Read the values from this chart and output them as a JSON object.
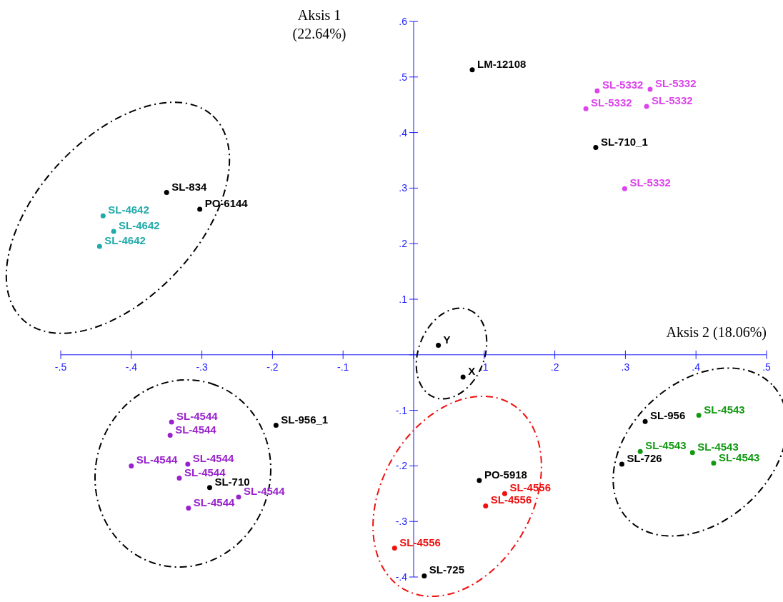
{
  "chart_data": {
    "type": "scatter",
    "xlabel": "Aksis 2 (18.06%)",
    "ylabel": "Aksis 1 (22.64%)",
    "xlim": [
      -0.5,
      0.5
    ],
    "ylim": [
      -0.4,
      0.6
    ],
    "xticks": [
      {
        "value": -0.5,
        "label": "-.5"
      },
      {
        "value": -0.4,
        "label": "-.4"
      },
      {
        "value": -0.3,
        "label": "-.3"
      },
      {
        "value": -0.2,
        "label": "-.2"
      },
      {
        "value": -0.1,
        "label": "-.1"
      },
      {
        "value": 0,
        "label": null
      },
      {
        "value": 0.1,
        "label": ".1"
      },
      {
        "value": 0.2,
        "label": ".2"
      },
      {
        "value": 0.3,
        "label": ".3"
      },
      {
        "value": 0.4,
        "label": ".4"
      },
      {
        "value": 0.5,
        "label": ".5"
      }
    ],
    "yticks": [
      {
        "value": -0.4,
        "label": "-.4"
      },
      {
        "value": -0.3,
        "label": "-.3"
      },
      {
        "value": -0.2,
        "label": "-.2"
      },
      {
        "value": -0.1,
        "label": "-.1"
      },
      {
        "value": 0,
        "label": null
      },
      {
        "value": 0.1,
        "label": ".1"
      },
      {
        "value": 0.2,
        "label": ".2"
      },
      {
        "value": 0.3,
        "label": ".3"
      },
      {
        "value": 0.4,
        "label": ".4"
      },
      {
        "value": 0.5,
        "label": ".5"
      },
      {
        "value": 0.6,
        "label": ".6"
      }
    ],
    "grid": false,
    "marker": "circle",
    "series": [
      {
        "color": "#000000",
        "x": [
          0.083,
          0.258,
          -0.35,
          -0.303,
          0.035,
          0.07,
          -0.195,
          -0.289,
          0.093,
          0.015,
          0.328,
          0.295
        ],
        "values": [
          0.513,
          0.373,
          0.292,
          0.262,
          0.017,
          -0.04,
          -0.127,
          -0.239,
          -0.226,
          -0.398,
          -0.12,
          -0.197
        ]
      },
      {
        "color": "#dd44ee",
        "x": [
          0.299,
          0.244,
          0.33,
          0.26,
          0.335
        ],
        "values": [
          0.299,
          0.443,
          0.447,
          0.475,
          0.478
        ]
      },
      {
        "color": "#22aaaa",
        "x": [
          -0.425,
          -0.445,
          -0.44
        ],
        "values": [
          0.222,
          0.195,
          0.25
        ]
      },
      {
        "color": "#9922cc",
        "x": [
          -0.343,
          -0.345,
          -0.32,
          -0.332,
          -0.248,
          -0.319,
          -0.4
        ],
        "values": [
          -0.121,
          -0.145,
          -0.197,
          -0.222,
          -0.256,
          -0.276,
          -0.2
        ]
      },
      {
        "color": "#ee1111",
        "x": [
          0.102,
          0.129,
          -0.027
        ],
        "values": [
          -0.272,
          -0.25,
          -0.348
        ]
      },
      {
        "color": "#119911",
        "x": [
          0.404,
          0.321,
          0.395,
          0.425
        ],
        "values": [
          -0.109,
          -0.174,
          -0.176,
          -0.195
        ]
      }
    ],
    "annotations": [
      {
        "text": "LM-12108",
        "x": 0.083,
        "y": 0.513
      },
      {
        "text": "SL-710_1",
        "x": 0.258,
        "y": 0.373
      },
      {
        "text": "SL-834",
        "x": -0.35,
        "y": 0.292
      },
      {
        "text": "PO-6144",
        "x": -0.303,
        "y": 0.262
      },
      {
        "text": "Y",
        "x": 0.035,
        "y": 0.017
      },
      {
        "text": "X",
        "x": 0.07,
        "y": -0.04
      },
      {
        "text": "SL-956_1",
        "x": -0.195,
        "y": -0.127
      },
      {
        "text": "SL-710",
        "x": -0.289,
        "y": -0.239
      },
      {
        "text": "PO-5918",
        "x": 0.093,
        "y": -0.226
      },
      {
        "text": "SL-725",
        "x": 0.015,
        "y": -0.398
      },
      {
        "text": "SL-956",
        "x": 0.328,
        "y": -0.12
      },
      {
        "text": "SL-726",
        "x": 0.295,
        "y": -0.197
      },
      {
        "text": "SL-5332",
        "x": 0.299,
        "y": 0.299
      },
      {
        "text": "SL-5332",
        "x": 0.244,
        "y": 0.443
      },
      {
        "text": "SL-5332",
        "x": 0.33,
        "y": 0.447
      },
      {
        "text": "SL-5332",
        "x": 0.26,
        "y": 0.475
      },
      {
        "text": "SL-5332",
        "x": 0.335,
        "y": 0.478
      },
      {
        "text": "SL-4642",
        "x": -0.425,
        "y": 0.222
      },
      {
        "text": "SL-4642",
        "x": -0.445,
        "y": 0.195
      },
      {
        "text": "SL-4642",
        "x": -0.44,
        "y": 0.25
      },
      {
        "text": "SL-4544",
        "x": -0.343,
        "y": -0.121
      },
      {
        "text": "SL-4544",
        "x": -0.345,
        "y": -0.145
      },
      {
        "text": "SL-4544",
        "x": -0.32,
        "y": -0.197
      },
      {
        "text": "SL-4544",
        "x": -0.332,
        "y": -0.222
      },
      {
        "text": "SL-4544",
        "x": -0.248,
        "y": -0.256
      },
      {
        "text": "SL-4544",
        "x": -0.319,
        "y": -0.276
      },
      {
        "text": "SL-4544",
        "x": -0.4,
        "y": -0.2
      },
      {
        "text": "SL-4556",
        "x": 0.102,
        "y": -0.272
      },
      {
        "text": "SL-4556",
        "x": 0.129,
        "y": -0.25
      },
      {
        "text": "SL-4556",
        "x": -0.027,
        "y": -0.348
      },
      {
        "text": "SL-4543",
        "x": 0.404,
        "y": -0.109
      },
      {
        "text": "SL-4543",
        "x": 0.321,
        "y": -0.174
      },
      {
        "text": "SL-4543",
        "x": 0.395,
        "y": -0.176
      },
      {
        "text": "SL-4543",
        "x": 0.425,
        "y": -0.195
      }
    ]
  }
}
